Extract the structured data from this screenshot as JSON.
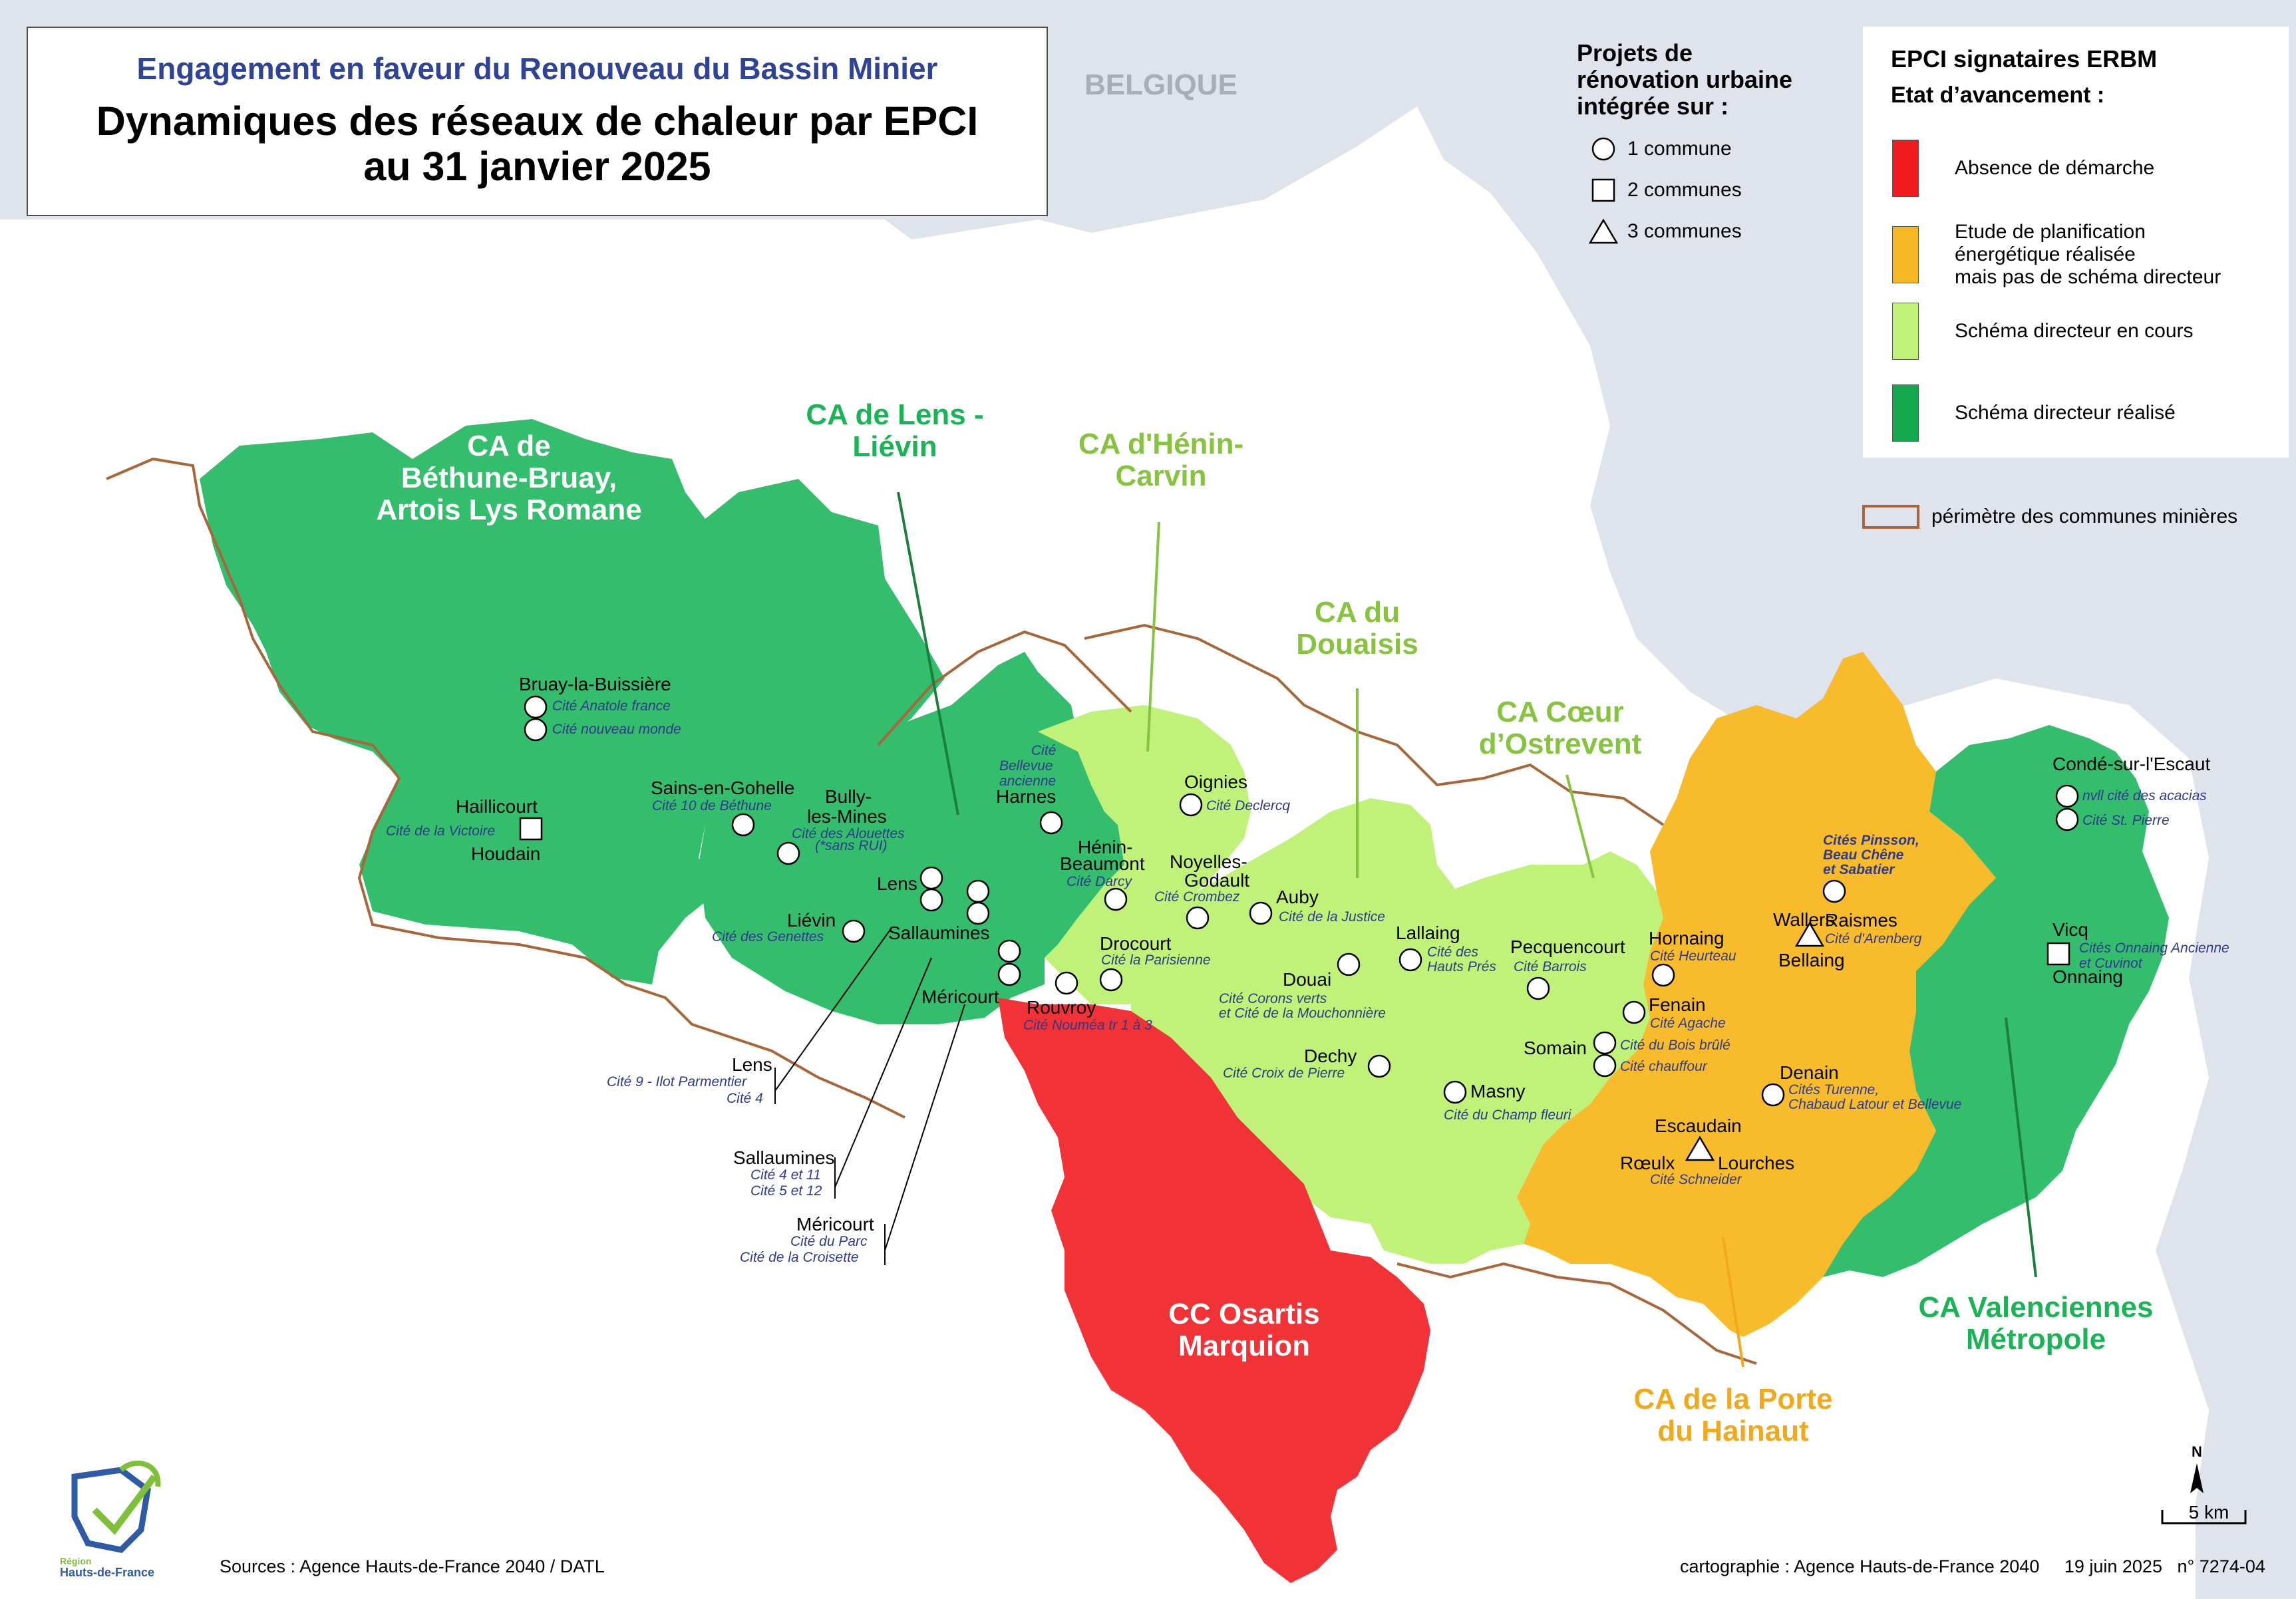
{
  "title": {
    "subtitle": "Engagement en faveur du Renouveau du Bassin Minier",
    "main_line1": "Dynamiques des réseaux de chaleur par EPCI",
    "main_line2": "au 31 janvier 2025"
  },
  "country_label": "BELGIQUE",
  "projects_legend": {
    "title": "Projets de\nrénovation urbaine\nintégrée sur :",
    "items": [
      {
        "symbol": "circle",
        "label": "1 commune"
      },
      {
        "symbol": "square",
        "label": "2 communes"
      },
      {
        "symbol": "triangle",
        "label": "3 communes"
      }
    ]
  },
  "status_legend": {
    "title": "EPCI signataires ERBM",
    "subtitle": "Etat d’avancement :",
    "items": [
      {
        "color": "#f01b1e",
        "label": "Absence de démarche"
      },
      {
        "color": "#f6b724",
        "label": "Etude de planification\nénergétique réalisée\nmais pas de schéma directeur"
      },
      {
        "color": "#c0f27a",
        "label": "Schéma directeur en cours"
      },
      {
        "color": "#15a94f",
        "label": "Schéma directeur réalisé"
      }
    ],
    "perimeter_label": "périmètre des communes minières",
    "perimeter_color": "#a8673a"
  },
  "colors": {
    "background": "#dfe4ec",
    "land": "#ffffff",
    "dark_green": "#33bd6c",
    "light_green": "#c0f27a",
    "orange": "#f7bb2b",
    "red": "#f13236",
    "epci_dark_green_text": "#1ab356",
    "epci_light_green_text": "#86c440",
    "epci_orange_text": "#f0a91d",
    "cite_text": "#2f3a8c",
    "perimeter": "#a8673a"
  },
  "epci_labels": {
    "bethune": [
      "CA de",
      "Béthune-Bruay,",
      "Artois Lys Romane"
    ],
    "lens": [
      "CA de Lens -",
      "Liévin"
    ],
    "henin": [
      "CA d'Hénin-",
      "Carvin"
    ],
    "douaisis": [
      "CA du",
      "Douaisis"
    ],
    "coeur": [
      "CA Cœur",
      "d’Ostrevent"
    ],
    "osartis": [
      "CC Osartis",
      "Marquion"
    ],
    "porte": [
      "CA de la Porte",
      "du Hainaut"
    ],
    "valenciennes": [
      "CA Valenciennes",
      "Métropole"
    ]
  },
  "cities": {
    "bruay": "Bruay-la-Buissière",
    "haillicourt": "Haillicourt",
    "houdain": "Houdain",
    "sains": "Sains-en-Gohelle",
    "bully1": "Bully-",
    "bully2": "les-Mines",
    "harnes": "Harnes",
    "lens": "Lens",
    "lievin": "Liévin",
    "sallaumines": "Sallaumines",
    "mericourt": "Méricourt",
    "rouvroy": "Rouvroy",
    "oignies": "Oignies",
    "henin1": "Hénin-",
    "henin2": "Beaumont",
    "noyelles1": "Noyelles-",
    "noyelles2": "Godault",
    "auby": "Auby",
    "drocourt": "Drocourt",
    "lallaing": "Lallaing",
    "douai": "Douai",
    "dechy": "Dechy",
    "masny": "Masny",
    "pecquencourt": "Pecquencourt",
    "hornaing": "Hornaing",
    "fenain": "Fenain",
    "somain": "Somain",
    "wallers": "Wallers",
    "raismes": "Raismes",
    "bellaing": "Bellaing",
    "denain": "Denain",
    "escaudain": "Escaudain",
    "roeulx": "Rœulx",
    "lourches": "Lourches",
    "conde": "Condé-sur-l'Escaut",
    "vicq": "Vicq",
    "onnaing": "Onnaing"
  },
  "cites": {
    "anatole": "Cité Anatole france",
    "nouveau_monde": "Cité nouveau monde",
    "victoire": "Cité de la Victoire",
    "bethune10": "Cité 10 de Béthune",
    "alouettes": "Cité des Alouettes",
    "sans_rui": "(*sans RUI)",
    "bellevue1": "Cité",
    "bellevue2": "Bellevue",
    "bellevue3": "ancienne",
    "genettes": "Cité des Genettes",
    "declercq": "Cité Declercq",
    "darcy": "Cité Darcy",
    "crombez": "Cité Crombez",
    "justice": "Cité de la Justice",
    "parisienne": "Cité la Parisienne",
    "noumea": "Cité Nouméa tr 1 à 3",
    "hauts_pres1": "Cité des",
    "hauts_pres2": "Hauts Prés",
    "corons1": "Cité Corons verts",
    "corons2": "et Cité de la Mouchonnière",
    "croix": "Cité Croix de Pierre",
    "barrois": "Cité Barrois",
    "heurteau": "Cité Heurteau",
    "agache": "Cité Agache",
    "bois_brule": "Cité du Bois brûlé",
    "chauffour": "Cité chauffour",
    "champ_fleuri": "Cité du Champ fleuri",
    "schneider": "Cité Schneider",
    "pinsson1": "Cités Pinsson,",
    "pinsson2": "Beau Chêne",
    "pinsson3": "et Sabatier",
    "arenberg": "Cité d'Arenberg",
    "turenne1": "Cités Turenne,",
    "turenne2": "Chabaud Latour et Bellevue",
    "acacias": "nvll cité des acacias",
    "st_pierre": "Cité St. Pierre",
    "onnaing1": "Cités Onnaing Ancienne",
    "onnaing2": "et Cuvinot"
  },
  "callouts": {
    "lens_title": "Lens",
    "lens_cite1": "Cité 9 - Ilot Parmentier",
    "lens_cite2": "Cité 4",
    "sall_title": "Sallaumines",
    "sall_cite1": "Cité 4 et 11",
    "sall_cite2": "Cité 5 et 12",
    "meri_title": "Méricourt",
    "meri_cite1": "Cité du Parc",
    "meri_cite2": "Cité de la Croisette"
  },
  "north_label": "N",
  "scale_label": "5 km",
  "logo": {
    "line1": "Région",
    "line2": "Hauts-de-France"
  },
  "footer": {
    "sources": "Sources : Agence Hauts-de-France 2040 / DATL",
    "credits": "cartographie : Agence Hauts-de-France 2040     19 juin 2025   n° 7274-04"
  }
}
